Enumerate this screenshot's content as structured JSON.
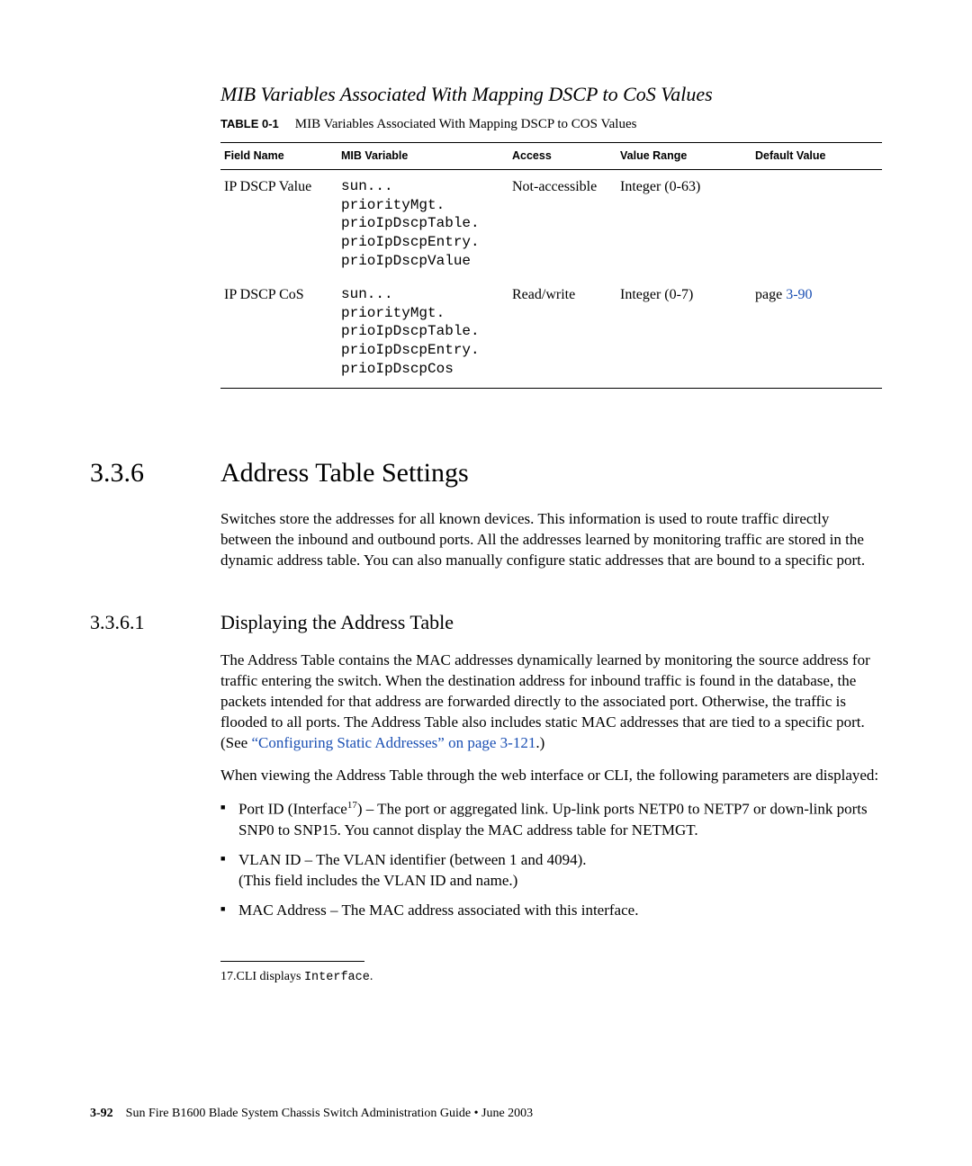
{
  "sectionTitleItalic": "MIB Variables Associated With Mapping DSCP to CoS Values",
  "tableLabel": "TABLE 0-1",
  "tableCaption": "MIB Variables Associated With Mapping DSCP to COS Values",
  "table": {
    "headers": [
      "Field Name",
      "MIB Variable",
      "Access",
      "Value Range",
      "Default Value"
    ],
    "rows": [
      {
        "field": "IP DSCP Value",
        "mib": "sun...\npriorityMgt.\nprioIpDscpTable.\nprioIpDscpEntry.\nprioIpDscpValue",
        "access": "Not-accessible",
        "range": "Integer (0-63)",
        "default": ""
      },
      {
        "field": "IP DSCP CoS",
        "mib": "sun...\npriorityMgt.\nprioIpDscpTable.\nprioIpDscpEntry.\nprioIpDscpCos",
        "access": "Read/write",
        "range": "Integer (0-7)",
        "default": "page 3-90",
        "defaultPrefix": "page ",
        "defaultLink": "3-90"
      }
    ]
  },
  "h2": {
    "num": "3.3.6",
    "title": "Address Table Settings"
  },
  "h2body": "Switches store the addresses for all known devices. This information is used to route traffic directly between the inbound and outbound ports. All the addresses learned by monitoring traffic are stored in the dynamic address table. You can also manually configure static addresses that are bound to a specific port.",
  "h3": {
    "num": "3.3.6.1",
    "title": "Displaying the Address Table"
  },
  "h3p1_a": "The Address Table contains the MAC addresses dynamically learned by monitoring the source address for traffic entering the switch. When the destination address for inbound traffic is found in the database, the packets intended for that address are forwarded directly to the associated port. Otherwise, the traffic is flooded to all ports. The Address Table also includes static MAC addresses that are tied to a specific port. (See ",
  "h3p1_link": "“Configuring Static Addresses” on page 3-121",
  "h3p1_b": ".)",
  "h3p2": "When viewing the Address Table through the web interface or CLI, the following parameters are displayed:",
  "bullets": {
    "b1_a": "Port ID (Interface",
    "b1_sup": "17",
    "b1_b": ") – The port or aggregated link. Up-link ports NETP0 to NETP7 or down-link ports SNP0 to SNP15. You cannot display the MAC address table for NETMGT.",
    "b2_a": "VLAN ID – The VLAN identifier (between 1 and 4094).",
    "b2_b": "(This field includes the VLAN ID and name.)",
    "b3": "MAC Address – The MAC address associated with this interface."
  },
  "footnote_a": "17.CLI displays ",
  "footnote_mono": "Interface",
  "footnote_b": ".",
  "footer": {
    "pagenum": "3-92",
    "text": "Sun Fire B1600 Blade System Chassis Switch Administration Guide • June 2003"
  }
}
